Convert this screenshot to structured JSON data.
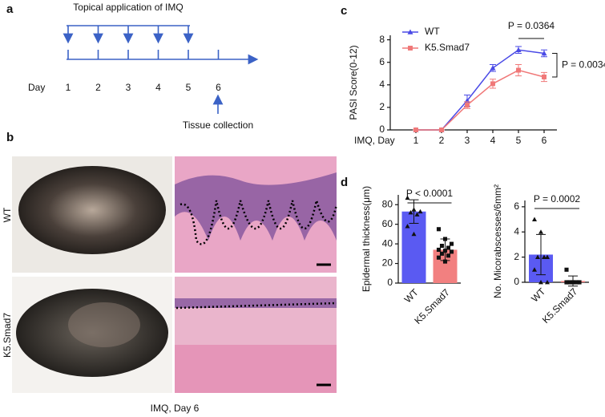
{
  "panel_labels": [
    "a",
    "b",
    "c",
    "d"
  ],
  "timeline": {
    "title": "Topical application of IMQ",
    "day_label": "Day",
    "days": [
      "1",
      "2",
      "3",
      "4",
      "5",
      "6"
    ],
    "collection": "Tissue collection"
  },
  "images": {
    "rows": [
      "WT",
      "K5.Smad7"
    ],
    "caption": "IMQ, Day 6"
  },
  "chart_data": [
    {
      "type": "line",
      "ylabel": "PASI Score(0-12)",
      "xlabel": "IMQ, Day",
      "x": [
        1,
        2,
        3,
        4,
        5,
        6
      ],
      "xlim": [
        0,
        6.5
      ],
      "xticks": [
        1,
        2,
        3,
        4,
        5,
        6
      ],
      "ylim": [
        0,
        8.4
      ],
      "yticks": [
        0,
        2,
        4,
        6,
        8
      ],
      "series": [
        {
          "name": "WT",
          "color": "#4a4ae6",
          "marker": "triangle",
          "values": [
            0,
            0,
            2.6,
            5.5,
            7.1,
            6.8
          ],
          "errors": [
            0,
            0,
            0.5,
            0.3,
            0.3,
            0.3
          ]
        },
        {
          "name": "K5.Smad7",
          "color": "#f07878",
          "marker": "square",
          "values": [
            0,
            0,
            2.2,
            4.1,
            5.3,
            4.7
          ],
          "errors": [
            0,
            0,
            0.3,
            0.4,
            0.5,
            0.4
          ]
        }
      ],
      "annotations": [
        "P = 0.0364",
        "P = 0.0034"
      ]
    },
    {
      "type": "bar",
      "ylabel": "Epidermal thickness(μm)",
      "categories": [
        "WT",
        "K5.Smad7"
      ],
      "values": [
        73,
        34
      ],
      "errors": [
        12,
        11
      ],
      "colors": [
        "#5a5af2",
        "#f28080"
      ],
      "markers": [
        "triangle",
        "square"
      ],
      "points": [
        [
          87,
          75,
          73,
          72,
          70,
          58,
          50
        ],
        [
          55,
          45,
          40,
          38,
          36,
          34,
          33,
          32,
          30,
          28,
          26,
          22
        ]
      ],
      "ylim": [
        0,
        90
      ],
      "yticks": [
        0,
        20,
        40,
        60,
        80
      ],
      "annotation": "P < 0.0001"
    },
    {
      "type": "bar",
      "ylabel": "No. Micorabscesses/6mm²",
      "categories": [
        "WT",
        "K5.Smad7"
      ],
      "values": [
        2.2,
        0.1
      ],
      "errors": [
        1.6,
        0.4
      ],
      "colors": [
        "#5a5af2",
        "#f28080"
      ],
      "markers": [
        "triangle",
        "square"
      ],
      "points": [
        [
          5,
          4,
          2,
          2,
          2,
          1,
          0,
          0
        ],
        [
          1,
          0,
          0,
          0,
          0,
          0,
          0,
          0,
          0,
          0,
          0
        ]
      ],
      "ylim": [
        0,
        6.5
      ],
      "yticks": [
        0,
        2,
        4,
        6
      ],
      "annotation": "P = 0.0002"
    }
  ]
}
